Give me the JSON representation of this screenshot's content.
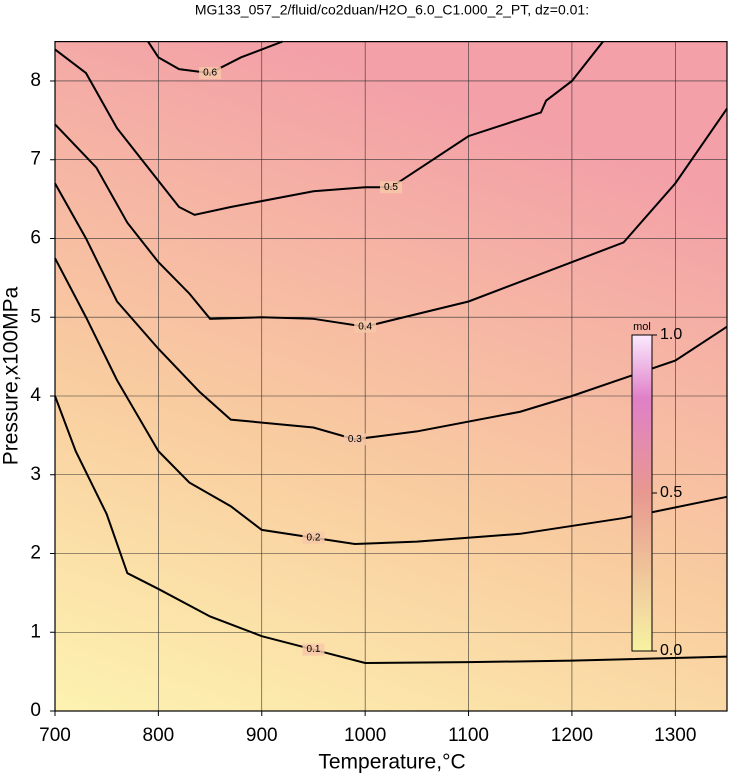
{
  "chart_data": {
    "type": "contour",
    "title": "MG133_057_2/fluid/co2duan/H2O_6.0_C1.000_2_PT, dz=0.01:",
    "x_label": "Temperature,°C",
    "y_label": "Pressure,x100MPa",
    "xlim": [
      700,
      1350
    ],
    "ylim": [
      0,
      8.5
    ],
    "xticks": [
      700,
      800,
      900,
      1000,
      1100,
      1200,
      1300
    ],
    "yticks": [
      0,
      1,
      2,
      3,
      4,
      5,
      6,
      7,
      8
    ],
    "grid": true,
    "colorbar": {
      "label": "mol",
      "lim": [
        0,
        1
      ],
      "ticks": [
        {
          "value": 0,
          "label": "0.0"
        },
        {
          "value": 0.5,
          "label": "0.5"
        },
        {
          "value": 1,
          "label": "1.0"
        }
      ]
    },
    "contours": [
      {
        "level": 0.1,
        "x": [
          700,
          720,
          750,
          770,
          800,
          850,
          900,
          950,
          1000,
          1100,
          1200,
          1350
        ],
        "y": [
          4.0,
          3.3,
          2.5,
          1.75,
          1.55,
          1.2,
          0.95,
          0.78,
          0.61,
          0.62,
          0.64,
          0.69
        ]
      },
      {
        "level": 0.2,
        "x": [
          700,
          730,
          760,
          800,
          830,
          870,
          900,
          950,
          990,
          1050,
          1150,
          1250,
          1350
        ],
        "y": [
          5.75,
          5.0,
          4.2,
          3.3,
          2.9,
          2.6,
          2.3,
          2.2,
          2.12,
          2.15,
          2.25,
          2.45,
          2.72
        ]
      },
      {
        "level": 0.3,
        "x": [
          700,
          730,
          760,
          800,
          840,
          870,
          950,
          990,
          1050,
          1150,
          1200,
          1300,
          1350
        ],
        "y": [
          6.7,
          6.0,
          5.2,
          4.6,
          4.05,
          3.7,
          3.6,
          3.45,
          3.55,
          3.8,
          4.0,
          4.45,
          4.88
        ]
      },
      {
        "level": 0.4,
        "x": [
          700,
          740,
          770,
          800,
          830,
          850,
          900,
          950,
          1000,
          1100,
          1170,
          1250,
          1300,
          1350
        ],
        "y": [
          7.45,
          6.9,
          6.2,
          5.7,
          5.3,
          4.98,
          5.0,
          4.98,
          4.88,
          5.2,
          5.55,
          5.95,
          6.7,
          7.65
        ]
      },
      {
        "level": 0.5,
        "x": [
          700,
          730,
          760,
          790,
          820,
          835,
          870,
          950,
          1000,
          1025,
          1100,
          1170,
          1175,
          1200,
          1230
        ],
        "y": [
          8.4,
          8.1,
          7.4,
          6.9,
          6.4,
          6.3,
          6.4,
          6.6,
          6.65,
          6.65,
          7.3,
          7.6,
          7.75,
          8.0,
          8.5
        ]
      },
      {
        "level": 0.6,
        "x": [
          790,
          800,
          820,
          850,
          880,
          920
        ],
        "y": [
          8.5,
          8.3,
          8.15,
          8.1,
          8.3,
          8.5
        ]
      }
    ]
  }
}
